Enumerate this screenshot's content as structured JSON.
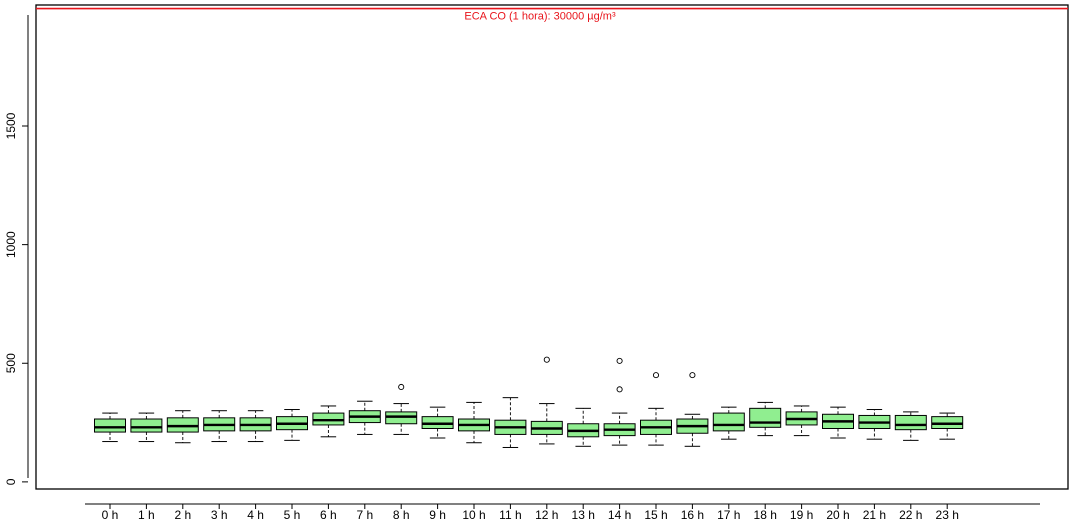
{
  "chart_data": {
    "type": "box",
    "title": "",
    "xlabel": "",
    "ylabel": "",
    "ylim": [
      -30,
      2010
    ],
    "yticks": [
      0,
      500,
      1000,
      1500
    ],
    "grid": false,
    "box_fill_color": "#90ee90",
    "categories": [
      "0 h",
      "1 h",
      "2 h",
      "3 h",
      "4 h",
      "5 h",
      "6 h",
      "7 h",
      "8 h",
      "9 h",
      "10 h",
      "11 h",
      "12 h",
      "13 h",
      "14 h",
      "15 h",
      "16 h",
      "17 h",
      "18 h",
      "19 h",
      "20 h",
      "21 h",
      "22 h",
      "23 h"
    ],
    "boxes": [
      {
        "lower_whisker": 170,
        "q1": 210,
        "median": 230,
        "q3": 265,
        "upper_whisker": 290,
        "outliers": []
      },
      {
        "lower_whisker": 170,
        "q1": 210,
        "median": 230,
        "q3": 265,
        "upper_whisker": 290,
        "outliers": []
      },
      {
        "lower_whisker": 165,
        "q1": 210,
        "median": 235,
        "q3": 270,
        "upper_whisker": 300,
        "outliers": []
      },
      {
        "lower_whisker": 170,
        "q1": 215,
        "median": 240,
        "q3": 270,
        "upper_whisker": 300,
        "outliers": []
      },
      {
        "lower_whisker": 170,
        "q1": 215,
        "median": 240,
        "q3": 270,
        "upper_whisker": 300,
        "outliers": []
      },
      {
        "lower_whisker": 175,
        "q1": 220,
        "median": 245,
        "q3": 275,
        "upper_whisker": 305,
        "outliers": []
      },
      {
        "lower_whisker": 190,
        "q1": 240,
        "median": 260,
        "q3": 290,
        "upper_whisker": 320,
        "outliers": []
      },
      {
        "lower_whisker": 200,
        "q1": 250,
        "median": 275,
        "q3": 300,
        "upper_whisker": 340,
        "outliers": []
      },
      {
        "lower_whisker": 200,
        "q1": 245,
        "median": 275,
        "q3": 295,
        "upper_whisker": 330,
        "outliers": [
          400
        ]
      },
      {
        "lower_whisker": 185,
        "q1": 225,
        "median": 245,
        "q3": 275,
        "upper_whisker": 315,
        "outliers": []
      },
      {
        "lower_whisker": 165,
        "q1": 215,
        "median": 240,
        "q3": 265,
        "upper_whisker": 335,
        "outliers": []
      },
      {
        "lower_whisker": 145,
        "q1": 200,
        "median": 230,
        "q3": 260,
        "upper_whisker": 355,
        "outliers": []
      },
      {
        "lower_whisker": 160,
        "q1": 200,
        "median": 225,
        "q3": 255,
        "upper_whisker": 330,
        "outliers": [
          515
        ]
      },
      {
        "lower_whisker": 150,
        "q1": 190,
        "median": 215,
        "q3": 245,
        "upper_whisker": 310,
        "outliers": []
      },
      {
        "lower_whisker": 155,
        "q1": 195,
        "median": 220,
        "q3": 245,
        "upper_whisker": 290,
        "outliers": [
          510,
          390
        ]
      },
      {
        "lower_whisker": 155,
        "q1": 200,
        "median": 230,
        "q3": 260,
        "upper_whisker": 310,
        "outliers": [
          450
        ]
      },
      {
        "lower_whisker": 150,
        "q1": 205,
        "median": 235,
        "q3": 265,
        "upper_whisker": 285,
        "outliers": [
          450
        ]
      },
      {
        "lower_whisker": 180,
        "q1": 215,
        "median": 240,
        "q3": 290,
        "upper_whisker": 315,
        "outliers": []
      },
      {
        "lower_whisker": 195,
        "q1": 230,
        "median": 250,
        "q3": 310,
        "upper_whisker": 335,
        "outliers": []
      },
      {
        "lower_whisker": 195,
        "q1": 240,
        "median": 265,
        "q3": 295,
        "upper_whisker": 320,
        "outliers": []
      },
      {
        "lower_whisker": 185,
        "q1": 225,
        "median": 255,
        "q3": 285,
        "upper_whisker": 315,
        "outliers": []
      },
      {
        "lower_whisker": 180,
        "q1": 225,
        "median": 250,
        "q3": 280,
        "upper_whisker": 305,
        "outliers": []
      },
      {
        "lower_whisker": 175,
        "q1": 220,
        "median": 240,
        "q3": 280,
        "upper_whisker": 295,
        "outliers": []
      },
      {
        "lower_whisker": 180,
        "q1": 225,
        "median": 245,
        "q3": 275,
        "upper_whisker": 290,
        "outliers": []
      }
    ],
    "reference_line": {
      "value": 1995,
      "label": "ECA CO (1 hora): 30000 µg/m³",
      "color": "#e8141b"
    }
  }
}
